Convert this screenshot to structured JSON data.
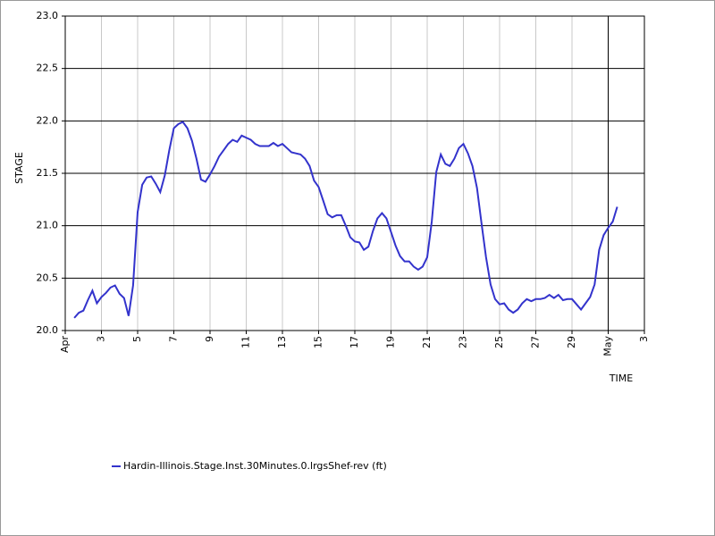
{
  "chart_data": {
    "type": "line",
    "y_label": "STAGE",
    "x_label": "TIME",
    "x": [
      1.5,
      1.75,
      2,
      2.25,
      2.5,
      2.75,
      3,
      3.25,
      3.5,
      3.75,
      4,
      4.25,
      4.5,
      4.75,
      5,
      5.25,
      5.5,
      5.75,
      6,
      6.25,
      6.5,
      6.75,
      7,
      7.25,
      7.5,
      7.75,
      8,
      8.25,
      8.5,
      8.75,
      9,
      9.25,
      9.5,
      9.75,
      10,
      10.25,
      10.5,
      10.75,
      11,
      11.25,
      11.5,
      11.75,
      12,
      12.25,
      12.5,
      12.75,
      13,
      13.25,
      13.5,
      13.75,
      14,
      14.25,
      14.5,
      14.75,
      15,
      15.25,
      15.5,
      15.75,
      16,
      16.25,
      16.5,
      16.75,
      17,
      17.25,
      17.5,
      17.75,
      18,
      18.25,
      18.5,
      18.75,
      19,
      19.25,
      19.5,
      19.75,
      20,
      20.25,
      20.5,
      20.75,
      21,
      21.25,
      21.5,
      21.75,
      22,
      22.25,
      22.5,
      22.75,
      23,
      23.25,
      23.5,
      23.75,
      24,
      24.25,
      24.5,
      24.75,
      25,
      25.25,
      25.5,
      25.75,
      26,
      26.25,
      26.5,
      26.75,
      27,
      27.25,
      27.5,
      27.75,
      28,
      28.25,
      28.5,
      28.75,
      29,
      29.25,
      29.5,
      29.75,
      30,
      30.25,
      30.5,
      30.75,
      31,
      31.25,
      31.5
    ],
    "series": [
      {
        "name": "Hardin-Illinois.Stage.Inst.30Minutes.0.lrgsShef-rev (ft)",
        "color": "#3333cc",
        "values": [
          20.12,
          20.17,
          20.19,
          20.29,
          20.38,
          20.26,
          20.32,
          20.36,
          20.41,
          20.43,
          20.35,
          20.31,
          20.14,
          20.43,
          21.13,
          21.39,
          21.46,
          21.47,
          21.4,
          21.32,
          21.48,
          21.72,
          21.93,
          21.97,
          21.99,
          21.93,
          21.81,
          21.64,
          21.44,
          21.42,
          21.49,
          21.57,
          21.66,
          21.72,
          21.78,
          21.82,
          21.8,
          21.86,
          21.84,
          21.82,
          21.78,
          21.76,
          21.76,
          21.76,
          21.79,
          21.76,
          21.78,
          21.74,
          21.7,
          21.69,
          21.68,
          21.64,
          21.57,
          21.43,
          21.37,
          21.24,
          21.11,
          21.08,
          21.1,
          21.1,
          21.0,
          20.89,
          20.85,
          20.84,
          20.77,
          20.8,
          20.95,
          21.07,
          21.12,
          21.07,
          20.94,
          20.81,
          20.71,
          20.66,
          20.66,
          20.61,
          20.58,
          20.61,
          20.7,
          21.04,
          21.51,
          21.68,
          21.59,
          21.57,
          21.64,
          21.74,
          21.78,
          21.69,
          21.57,
          21.36,
          21.02,
          20.7,
          20.44,
          20.3,
          20.25,
          20.26,
          20.2,
          20.17,
          20.2,
          20.26,
          20.3,
          20.28,
          20.3,
          20.3,
          20.31,
          20.34,
          20.31,
          20.34,
          20.29,
          20.3,
          20.3,
          20.25,
          20.2,
          20.26,
          20.32,
          20.44,
          20.77,
          20.91,
          20.98,
          21.04,
          21.18
        ]
      }
    ],
    "xlim": [
      1,
      33
    ],
    "xticks": [
      {
        "value": 1,
        "label": "Apr"
      },
      3,
      5,
      7,
      9,
      11,
      13,
      15,
      17,
      19,
      21,
      23,
      25,
      27,
      29,
      {
        "value": 31,
        "label": "May"
      },
      {
        "value": 33,
        "label": "3"
      }
    ],
    "ylim": [
      20,
      23
    ],
    "yticks": [
      {
        "value": 20,
        "label": "20.0"
      },
      20.5,
      {
        "value": 21,
        "label": "21.0"
      },
      21.5,
      {
        "value": 22,
        "label": "22.0"
      },
      22.5,
      {
        "value": 23,
        "label": "23.0"
      }
    ],
    "reference_line_x": 31,
    "grid": true
  }
}
